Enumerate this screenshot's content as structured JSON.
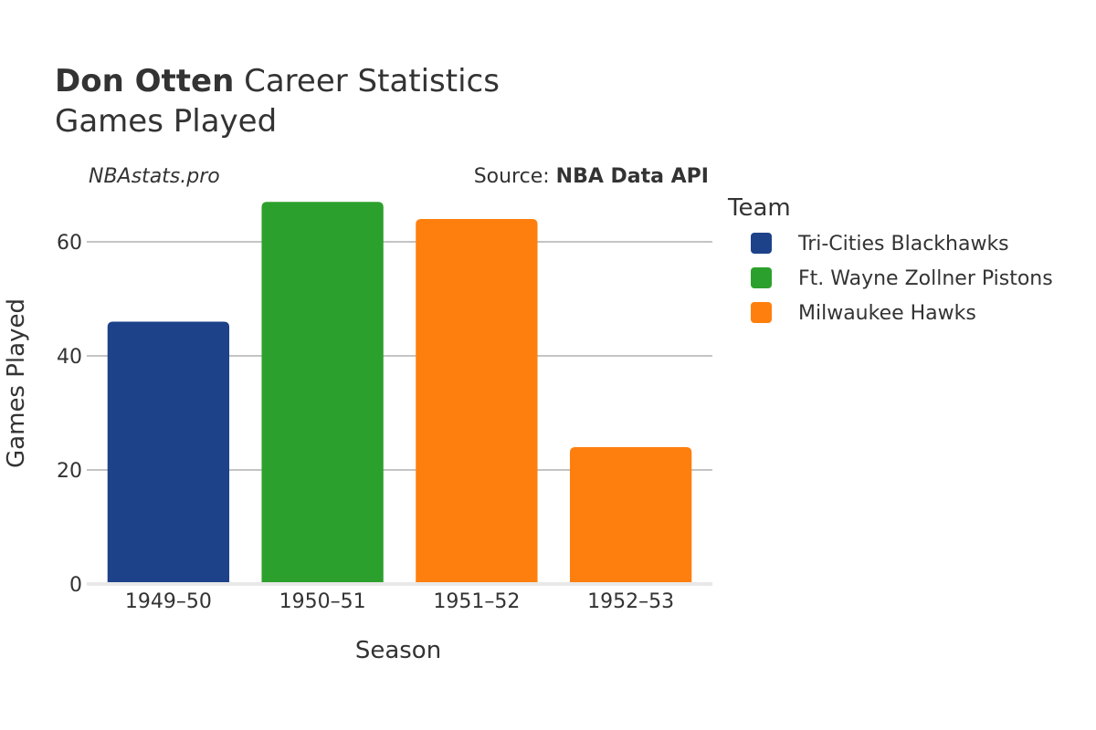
{
  "title": {
    "player": "Don Otten",
    "rest": " Career Statistics",
    "subtitle": "Games Played"
  },
  "credits": {
    "site": "NBAstats.pro",
    "source_prefix": "Source: ",
    "source_name": "NBA Data API"
  },
  "legend": {
    "title": "Team",
    "items": [
      {
        "label": "Tri-Cities Blackhawks",
        "color": "#1d428a"
      },
      {
        "label": "Ft. Wayne Zollner Pistons",
        "color": "#2ca02c"
      },
      {
        "label": "Milwaukee Hawks",
        "color": "#ff7f0e"
      }
    ]
  },
  "chart_data": {
    "type": "bar",
    "categories": [
      "1949–50",
      "1950–51",
      "1951–52",
      "1952–53"
    ],
    "values": [
      46,
      67,
      64,
      24
    ],
    "bar_colors": [
      "#1d428a",
      "#2ca02c",
      "#ff7f0e",
      "#ff7f0e"
    ],
    "bar_teams": [
      "Tri-Cities Blackhawks",
      "Ft. Wayne Zollner Pistons",
      "Milwaukee Hawks",
      "Milwaukee Hawks"
    ],
    "xlabel": "Season",
    "ylabel": "Games Played",
    "ylim": [
      0,
      70
    ],
    "yticks": [
      0,
      20,
      40,
      60
    ],
    "grid": true,
    "legend_position": "right"
  }
}
